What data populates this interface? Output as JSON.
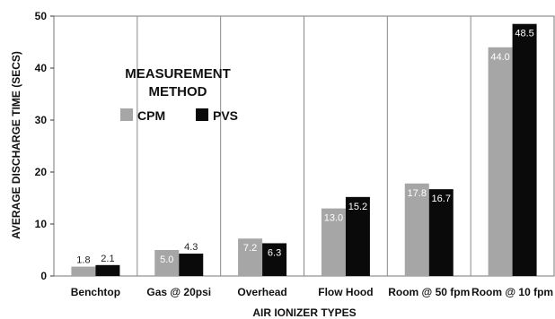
{
  "chart_data": {
    "type": "bar",
    "title": "",
    "xlabel": "AIR IONIZER TYPES",
    "ylabel": "AVERAGE DISCHARGE TIME (SECS)",
    "ylim": [
      0,
      50
    ],
    "yticks": [
      0,
      10,
      20,
      30,
      40,
      50
    ],
    "grid": "vertical separators",
    "categories": [
      "Benchtop",
      "Gas @ 20psi",
      "Overhead",
      "Flow Hood",
      "Room @ 50 fpm",
      "Room @ 10 fpm"
    ],
    "series": [
      {
        "name": "CPM",
        "values": [
          1.8,
          5.0,
          7.2,
          13.0,
          17.8,
          44.0
        ],
        "color": "#a6a6a6"
      },
      {
        "name": "PVS",
        "values": [
          2.1,
          4.3,
          6.3,
          15.2,
          16.7,
          48.5
        ],
        "color": "#0a0a0a"
      }
    ],
    "legend": {
      "title_line1": "MEASUREMENT",
      "title_line2": "METHOD",
      "placement": "upper-left"
    }
  }
}
